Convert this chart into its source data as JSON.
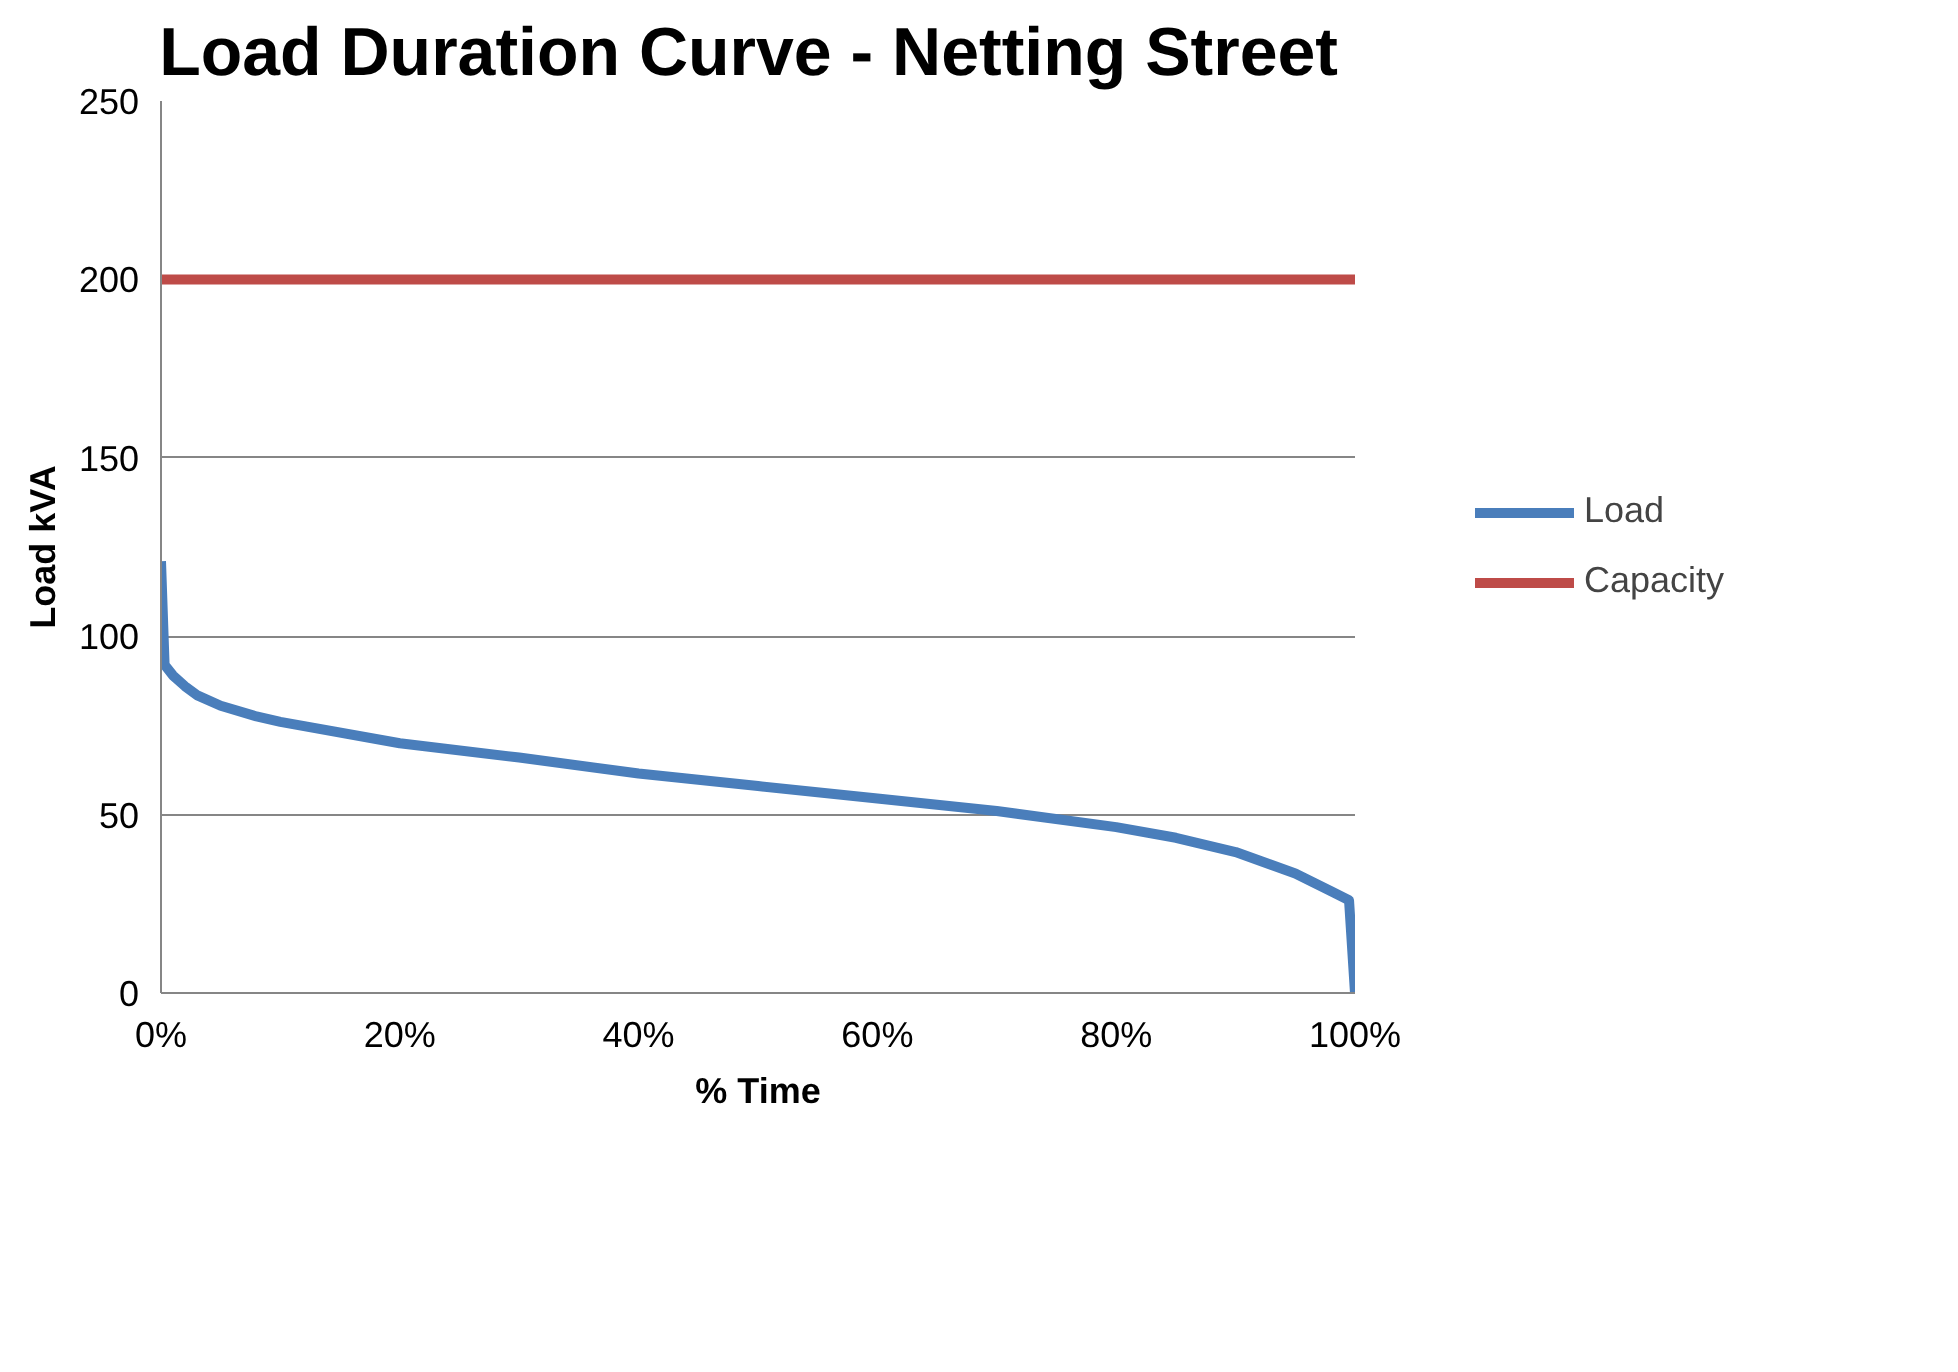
{
  "chart_data": {
    "type": "line",
    "title": "Load Duration Curve  - Netting Street",
    "xlabel": "% Time",
    "ylabel": "Load kVA",
    "xlim": [
      0,
      100
    ],
    "xticks": [
      {
        "value": 0,
        "label": "0%"
      },
      {
        "value": 20,
        "label": "20%"
      },
      {
        "value": 40,
        "label": "40%"
      },
      {
        "value": 60,
        "label": "60%"
      },
      {
        "value": 80,
        "label": "80%"
      },
      {
        "value": 100,
        "label": "100%"
      }
    ],
    "ylim": [
      0,
      250
    ],
    "yticks": [
      0,
      50,
      100,
      150,
      200,
      250
    ],
    "grid": "y",
    "legend": "right",
    "marker": "none",
    "line_style": "solid",
    "series": [
      {
        "name": "Load",
        "color": "#4a7ebb",
        "x": [
          0,
          0.3,
          1,
          2,
          3,
          5,
          8,
          10,
          20,
          30,
          40,
          50,
          60,
          70,
          80,
          85,
          90,
          95,
          98,
          99.5,
          100
        ],
        "values": [
          121,
          92,
          89,
          86,
          83.5,
          80.5,
          77.5,
          76,
          70,
          66,
          61.5,
          58,
          54.5,
          51,
          46.5,
          43.5,
          39.5,
          33.5,
          28.5,
          26,
          0
        ]
      },
      {
        "name": "Capacity",
        "color": "#be4b48",
        "x": [
          0,
          100
        ],
        "values": [
          200,
          200
        ]
      }
    ]
  }
}
